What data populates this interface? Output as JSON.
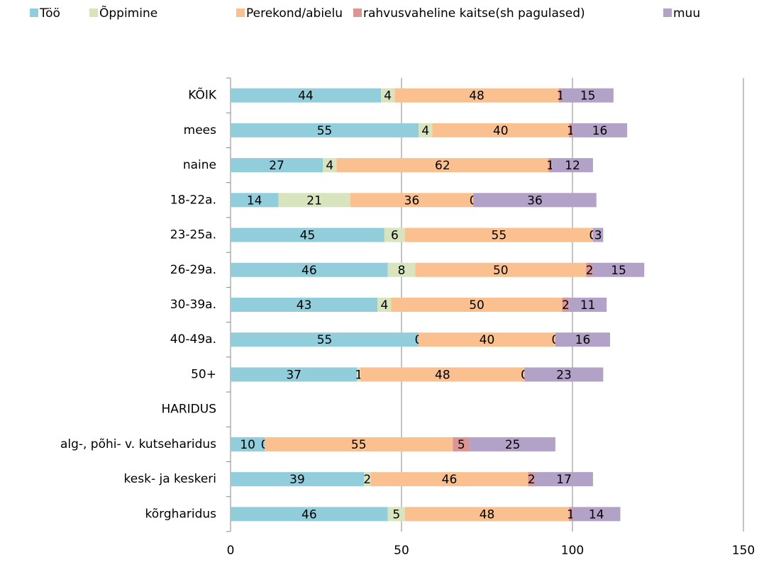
{
  "chart_data": {
    "type": "stacked_barh",
    "categories": [
      "KÕIK",
      "mees",
      "naine",
      "18-22a.",
      "23-25a.",
      "26-29a.",
      "30-39a.",
      "40-49a.",
      "50+",
      "HARIDUS",
      "alg-, põhi- v. kutseharidus",
      "kesk- ja keskeri",
      "kõrgharidus"
    ],
    "series": [
      {
        "name": "Töö",
        "color": "#92cddc",
        "values": [
          44,
          55,
          27,
          14,
          45,
          46,
          43,
          55,
          37,
          null,
          10,
          39,
          46
        ]
      },
      {
        "name": "Õppimine",
        "color": "#d7e4bd",
        "values": [
          4,
          4,
          4,
          21,
          6,
          8,
          4,
          0,
          1,
          null,
          0,
          2,
          5
        ]
      },
      {
        "name": "Perekond/abielu",
        "color": "#fac090",
        "values": [
          48,
          40,
          62,
          36,
          55,
          50,
          50,
          40,
          48,
          null,
          55,
          46,
          48
        ]
      },
      {
        "name": "rahvusvaheline kaitse(sh pagulased)",
        "color": "#d99694",
        "values": [
          1,
          1,
          1,
          0,
          0,
          2,
          2,
          0,
          0,
          null,
          5,
          2,
          1
        ]
      },
      {
        "name": "muu",
        "color": "#b3a2c7",
        "values": [
          15,
          16,
          12,
          36,
          3,
          15,
          11,
          16,
          23,
          null,
          25,
          17,
          14
        ]
      }
    ],
    "xlim": [
      0,
      150
    ],
    "xticks": [
      0,
      50,
      100,
      150
    ],
    "grid": true,
    "legend": "top"
  }
}
